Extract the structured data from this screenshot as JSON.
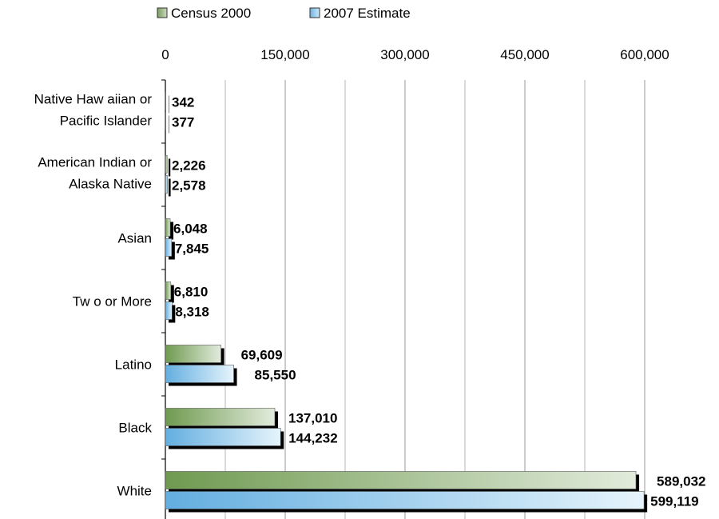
{
  "chart_data": {
    "type": "bar",
    "orientation": "horizontal",
    "categories": [
      "Native Haw aiian or|Pacific Islander",
      "American Indian or|Alaska Native",
      "Asian",
      "Tw o or More",
      "Latino",
      "Black",
      "White"
    ],
    "series": [
      {
        "name": "Census 2000",
        "values": [
          342,
          2226,
          6048,
          6810,
          69609,
          137010,
          589032
        ],
        "labels": [
          "342",
          "2,226",
          "6,048",
          "6,810",
          "69,609",
          "137,010",
          "589,032"
        ],
        "color": "#7a9e5e",
        "color_light": "#dfe9d8"
      },
      {
        "name": "2007 Estimate",
        "values": [
          377,
          2578,
          7845,
          8318,
          85550,
          144232,
          599119
        ],
        "labels": [
          "377",
          "2,578",
          "7,845",
          "8,318",
          "85,550",
          "144,232",
          "599,119"
        ],
        "color": "#6fb3e2",
        "color_light": "#dff0fb"
      }
    ],
    "xlim": [
      0,
      675000
    ],
    "xticks": [
      0,
      150000,
      300000,
      450000,
      600000
    ],
    "xtick_labels": [
      "0",
      "150,000",
      "300,000",
      "450,000",
      "600,000"
    ],
    "x_axis_position": "top",
    "grid": true,
    "legend_position": "top"
  }
}
